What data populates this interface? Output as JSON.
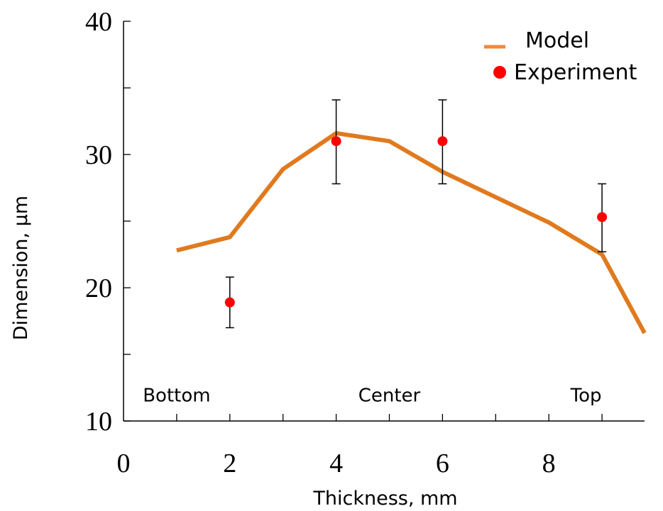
{
  "chart_data": {
    "type": "line",
    "xlabel": "Thickness, mm",
    "ylabel": "Dimension, µm",
    "xlim": [
      0,
      9.8
    ],
    "ylim": [
      10,
      40
    ],
    "x_ticks": [
      0,
      2,
      4,
      6,
      8
    ],
    "y_ticks": [
      10,
      20,
      30,
      40
    ],
    "x_minor_ticks": [
      1,
      3,
      5,
      7,
      9
    ],
    "y_minor_ticks": [
      15,
      25,
      35
    ],
    "grid": false,
    "legend_position": "top-right",
    "series": [
      {
        "name": "Model",
        "kind": "line",
        "color": "#E07A1F",
        "x": [
          1,
          2,
          3,
          4,
          5,
          6,
          7,
          8,
          9,
          9.8
        ],
        "y": [
          22.8,
          23.8,
          28.9,
          31.6,
          31.0,
          28.7,
          26.8,
          24.9,
          22.5,
          16.6
        ]
      },
      {
        "name": "Experiment",
        "kind": "scatter",
        "color": "#FF0000",
        "x": [
          2,
          4,
          6,
          9
        ],
        "y": [
          18.9,
          31.0,
          31.0,
          25.3
        ],
        "err_low": [
          17.0,
          27.8,
          27.8,
          22.7
        ],
        "err_high": [
          20.8,
          34.1,
          34.1,
          27.8
        ]
      }
    ],
    "annotations": [
      {
        "text": "Bottom",
        "x": 1,
        "y": 12
      },
      {
        "text": "Center",
        "x": 5,
        "y": 12
      },
      {
        "text": "Top",
        "x": 8.7,
        "y": 12
      }
    ]
  }
}
